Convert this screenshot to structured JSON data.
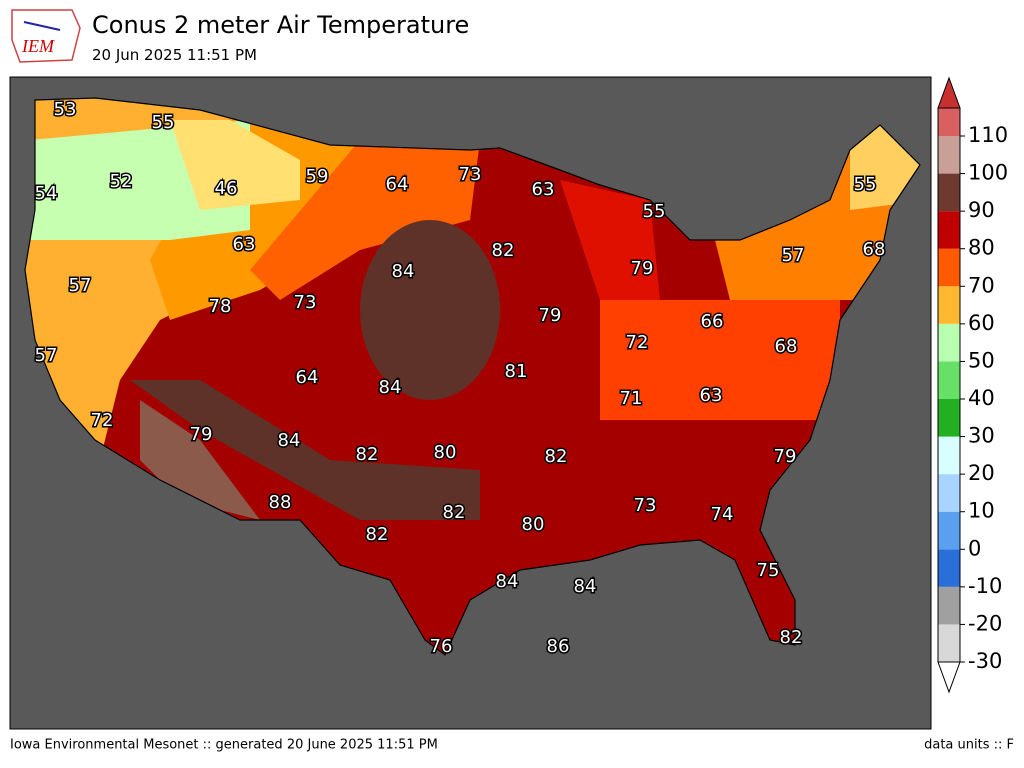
{
  "header": {
    "title": "Conus 2 meter Air Temperature",
    "subtitle": "20 Jun 2025 11:51 PM",
    "logo": "IEM"
  },
  "map": {
    "labels": [
      53,
      55,
      52,
      46,
      59,
      64,
      73,
      63,
      55,
      55,
      54,
      63,
      82,
      84,
      79,
      57,
      68,
      57,
      78,
      73,
      79,
      66,
      72,
      68,
      57,
      64,
      84,
      81,
      71,
      63,
      72,
      79,
      84,
      82,
      80,
      82,
      79,
      88,
      73,
      74,
      82,
      80,
      82,
      75,
      84,
      84,
      76,
      86,
      82
    ]
  },
  "colorbar": {
    "ticks": [
      -30,
      -20,
      -10,
      0,
      10,
      20,
      30,
      40,
      50,
      60,
      70,
      80,
      90,
      100,
      110
    ],
    "colors": [
      "#d8d8d8",
      "#a0a0a0",
      "#2a6fd8",
      "#5aa0ee",
      "#a8d4ff",
      "#d8ffff",
      "#22b022",
      "#66e066",
      "#b8ffb0",
      "#ffb830",
      "#ff5a00",
      "#c00000",
      "#6e3a30",
      "#c8a098"
    ]
  },
  "footer": {
    "left": "Iowa Environmental Mesonet :: generated 20 June 2025 11:51 PM",
    "right": "data units :: F"
  }
}
